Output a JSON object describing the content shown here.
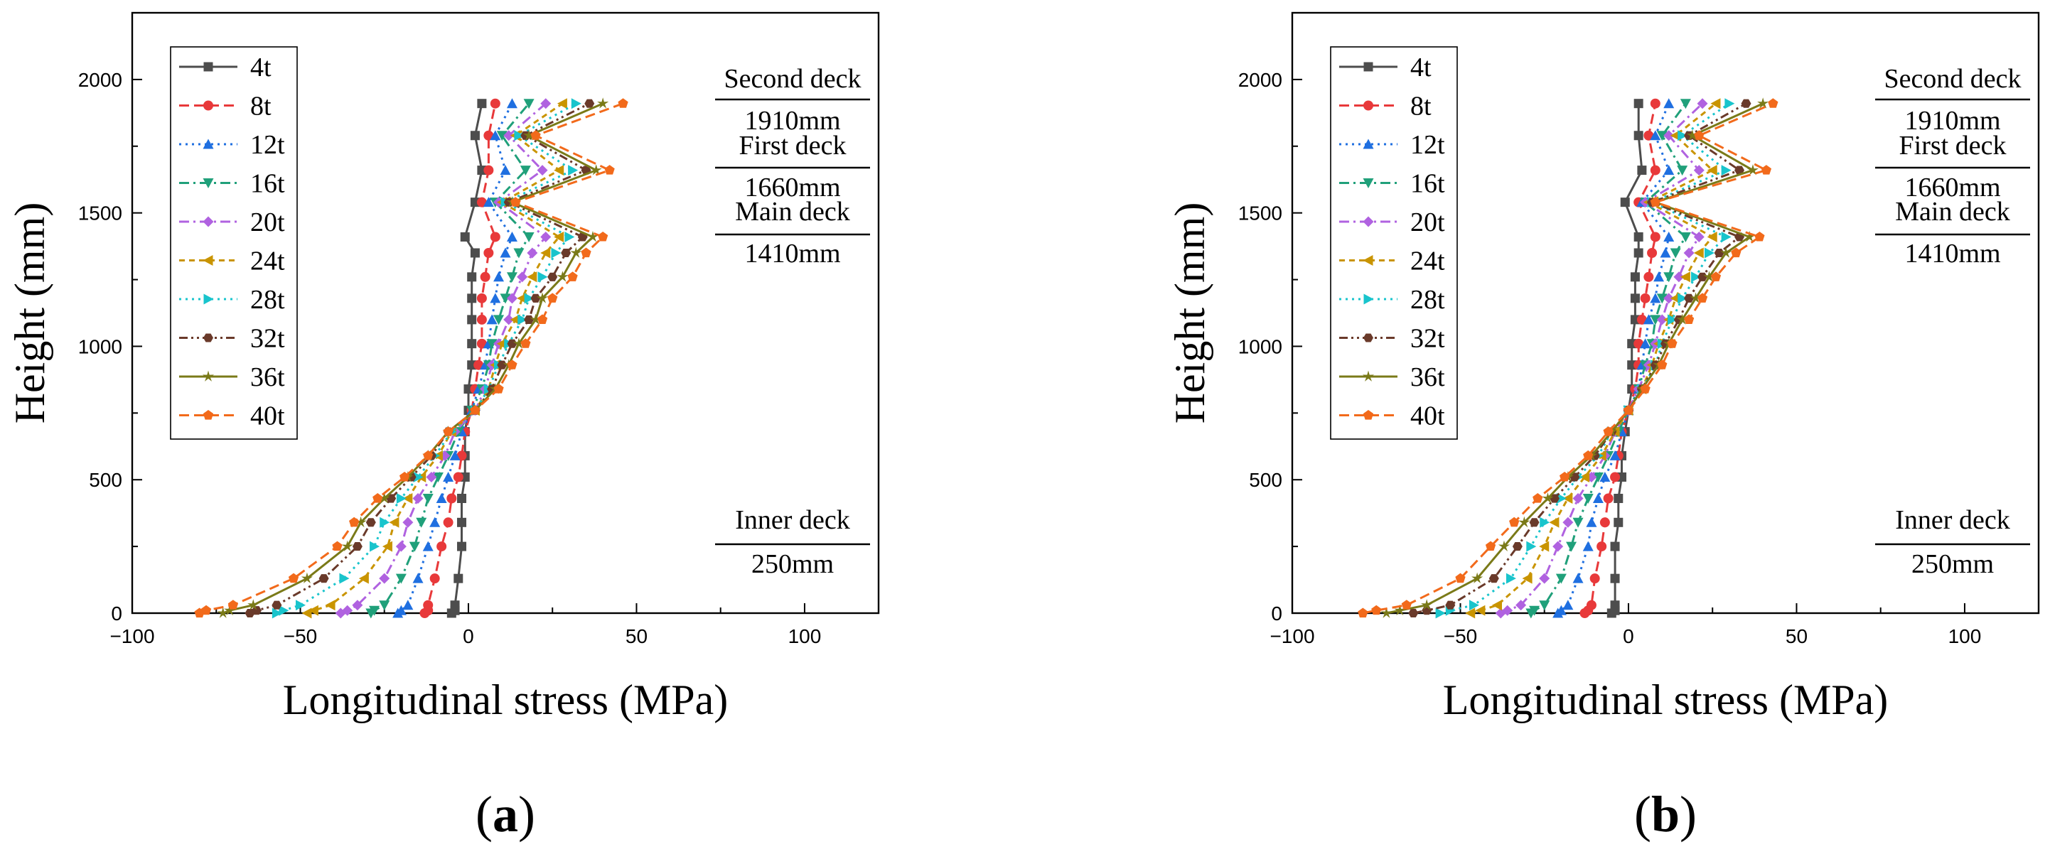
{
  "figure": {
    "series_meta": [
      {
        "name": "4t",
        "color": "#4d4d4d",
        "dash": "solid",
        "marker": "square"
      },
      {
        "name": "8t",
        "color": "#e8393a",
        "dash": "dash",
        "marker": "circle"
      },
      {
        "name": "12t",
        "color": "#1f6fe0",
        "dash": "dot",
        "marker": "triangle-up"
      },
      {
        "name": "16t",
        "color": "#20a07a",
        "dash": "dashdot",
        "marker": "triangle-down"
      },
      {
        "name": "20t",
        "color": "#b062e0",
        "dash": "dashdot",
        "marker": "diamond"
      },
      {
        "name": "24t",
        "color": "#c99400",
        "dash": "shortdash",
        "marker": "triangle-left"
      },
      {
        "name": "28t",
        "color": "#19c4cc",
        "dash": "dot",
        "marker": "triangle-right"
      },
      {
        "name": "32t",
        "color": "#6a3a2a",
        "dash": "dashdotdot",
        "marker": "hexagon"
      },
      {
        "name": "36t",
        "color": "#7a7a18",
        "dash": "solid",
        "marker": "star"
      },
      {
        "name": "40t",
        "color": "#f26a1b",
        "dash": "dash",
        "marker": "pentagon"
      }
    ]
  },
  "chart_data": [
    {
      "type": "line",
      "panel_label": "a",
      "panel_paren_open": "(",
      "panel_paren_close": ")",
      "xlabel": "Longitudinal stress (MPa)",
      "ylabel": "Height (mm)",
      "xlim": [
        -100,
        122
      ],
      "ylim": [
        0,
        2250
      ],
      "xticks": [
        -100,
        -50,
        0,
        50,
        100
      ],
      "xtick_labels": [
        "−100",
        "−50",
        "0",
        "50",
        "100"
      ],
      "yticks": [
        0,
        500,
        1000,
        1500,
        2000
      ],
      "ytick_labels": [
        "0",
        "500",
        "1000",
        "1500",
        "2000"
      ],
      "deck_annotations": [
        {
          "name": "Second deck",
          "value": "1910mm"
        },
        {
          "name": "First deck",
          "value": "1660mm"
        },
        {
          "name": "Main deck",
          "value": "1410mm"
        },
        {
          "name": "Inner deck",
          "value": "250mm"
        }
      ],
      "heights": [
        0,
        10,
        30,
        130,
        250,
        340,
        430,
        510,
        590,
        680,
        760,
        840,
        930,
        1010,
        1100,
        1180,
        1260,
        1350,
        1410,
        1540,
        1660,
        1790,
        1910
      ],
      "series": [
        {
          "name": "4t",
          "values": [
            -5,
            -4,
            -4,
            -3,
            -2,
            -2,
            -2,
            -1,
            -1,
            -1,
            0,
            0,
            1,
            1,
            1,
            1,
            1,
            2,
            -1,
            2,
            4,
            2,
            4
          ]
        },
        {
          "name": "8t",
          "values": [
            -13,
            -12,
            -12,
            -10,
            -8,
            -6,
            -5,
            -3,
            -2,
            -1,
            1,
            2,
            3,
            4,
            4,
            4,
            5,
            6,
            8,
            4,
            6,
            6,
            8
          ]
        },
        {
          "name": "12t",
          "values": [
            -21,
            -20,
            -18,
            -15,
            -12,
            -10,
            -8,
            -6,
            -4,
            -2,
            1,
            3,
            5,
            6,
            7,
            8,
            9,
            11,
            13,
            6,
            11,
            8,
            13
          ]
        },
        {
          "name": "16t",
          "values": [
            -29,
            -28,
            -25,
            -20,
            -16,
            -14,
            -12,
            -9,
            -6,
            -3,
            1,
            4,
            6,
            7,
            9,
            11,
            13,
            15,
            18,
            8,
            17,
            10,
            18
          ]
        },
        {
          "name": "20t",
          "values": [
            -38,
            -36,
            -33,
            -25,
            -20,
            -18,
            -15,
            -11,
            -7,
            -4,
            2,
            5,
            7,
            9,
            12,
            13,
            16,
            19,
            23,
            9,
            22,
            12,
            23
          ]
        },
        {
          "name": "24t",
          "values": [
            -48,
            -46,
            -41,
            -31,
            -24,
            -22,
            -18,
            -14,
            -9,
            -5,
            2,
            6,
            8,
            10,
            14,
            16,
            19,
            23,
            27,
            10,
            27,
            14,
            28
          ]
        },
        {
          "name": "28t",
          "values": [
            -57,
            -55,
            -50,
            -37,
            -28,
            -25,
            -20,
            -15,
            -10,
            -5,
            2,
            6,
            9,
            12,
            16,
            18,
            22,
            26,
            30,
            11,
            31,
            15,
            32
          ]
        },
        {
          "name": "32t",
          "values": [
            -65,
            -63,
            -57,
            -43,
            -33,
            -29,
            -23,
            -17,
            -11,
            -6,
            2,
            7,
            10,
            13,
            18,
            20,
            25,
            29,
            34,
            12,
            35,
            17,
            36
          ]
        },
        {
          "name": "36t",
          "values": [
            -73,
            -71,
            -64,
            -48,
            -36,
            -32,
            -25,
            -18,
            -12,
            -6,
            2,
            8,
            12,
            15,
            20,
            22,
            28,
            32,
            37,
            13,
            38,
            18,
            40
          ]
        },
        {
          "name": "40t",
          "values": [
            -80,
            -78,
            -70,
            -52,
            -39,
            -34,
            -27,
            -19,
            -12,
            -6,
            2,
            9,
            13,
            17,
            22,
            25,
            31,
            35,
            40,
            14,
            42,
            20,
            46
          ]
        }
      ]
    },
    {
      "type": "line",
      "panel_label": "b",
      "panel_paren_open": "(",
      "panel_paren_close": ")",
      "xlabel": "Longitudinal stress (MPa)",
      "ylabel": "Height (mm)",
      "xlim": [
        -100,
        122
      ],
      "ylim": [
        0,
        2250
      ],
      "xticks": [
        -100,
        -50,
        0,
        50,
        100
      ],
      "xtick_labels": [
        "−100",
        "−50",
        "0",
        "50",
        "100"
      ],
      "yticks": [
        0,
        500,
        1000,
        1500,
        2000
      ],
      "ytick_labels": [
        "0",
        "500",
        "1000",
        "1500",
        "2000"
      ],
      "deck_annotations": [
        {
          "name": "Second deck",
          "value": "1910mm"
        },
        {
          "name": "First deck",
          "value": "1660mm"
        },
        {
          "name": "Main deck",
          "value": "1410mm"
        },
        {
          "name": "Inner deck",
          "value": "250mm"
        }
      ],
      "heights": [
        0,
        10,
        30,
        130,
        250,
        340,
        430,
        510,
        590,
        680,
        760,
        840,
        930,
        1010,
        1100,
        1180,
        1260,
        1350,
        1410,
        1540,
        1660,
        1790,
        1910
      ],
      "series": [
        {
          "name": "4t",
          "values": [
            -5,
            -4,
            -4,
            -4,
            -4,
            -3,
            -3,
            -2,
            -2,
            -1,
            0,
            1,
            1,
            1,
            2,
            2,
            2,
            3,
            3,
            -1,
            4,
            3,
            3
          ]
        },
        {
          "name": "8t",
          "values": [
            -13,
            -12,
            -11,
            -10,
            -8,
            -7,
            -6,
            -4,
            -3,
            -2,
            0,
            2,
            3,
            3,
            4,
            5,
            6,
            7,
            8,
            3,
            8,
            6,
            8
          ]
        },
        {
          "name": "12t",
          "values": [
            -21,
            -20,
            -18,
            -15,
            -12,
            -11,
            -9,
            -7,
            -4,
            -2,
            0,
            3,
            4,
            5,
            6,
            8,
            9,
            11,
            12,
            4,
            12,
            8,
            12
          ]
        },
        {
          "name": "16t",
          "values": [
            -29,
            -28,
            -25,
            -20,
            -17,
            -15,
            -12,
            -9,
            -6,
            -3,
            0,
            3,
            5,
            7,
            8,
            10,
            12,
            14,
            17,
            5,
            16,
            10,
            17
          ]
        },
        {
          "name": "20t",
          "values": [
            -38,
            -36,
            -32,
            -25,
            -21,
            -18,
            -15,
            -11,
            -7,
            -4,
            0,
            3,
            6,
            8,
            10,
            12,
            15,
            18,
            21,
            5,
            21,
            12,
            22
          ]
        },
        {
          "name": "24t",
          "values": [
            -47,
            -44,
            -39,
            -30,
            -25,
            -22,
            -18,
            -13,
            -8,
            -4,
            0,
            4,
            7,
            9,
            12,
            14,
            17,
            21,
            25,
            6,
            25,
            14,
            26
          ]
        },
        {
          "name": "28t",
          "values": [
            -56,
            -53,
            -46,
            -35,
            -29,
            -25,
            -20,
            -15,
            -9,
            -5,
            0,
            4,
            8,
            10,
            13,
            16,
            20,
            24,
            29,
            7,
            29,
            16,
            30
          ]
        },
        {
          "name": "32t",
          "values": [
            -64,
            -60,
            -53,
            -40,
            -33,
            -28,
            -22,
            -16,
            -10,
            -5,
            0,
            4,
            8,
            11,
            15,
            18,
            22,
            27,
            33,
            7,
            33,
            18,
            35
          ]
        },
        {
          "name": "36t",
          "values": [
            -72,
            -68,
            -60,
            -45,
            -37,
            -31,
            -24,
            -18,
            -11,
            -5,
            0,
            4,
            9,
            12,
            16,
            20,
            24,
            29,
            36,
            8,
            37,
            19,
            40
          ]
        },
        {
          "name": "40t",
          "values": [
            -79,
            -75,
            -66,
            -50,
            -41,
            -34,
            -27,
            -19,
            -12,
            -6,
            0,
            5,
            10,
            13,
            18,
            22,
            26,
            32,
            39,
            8,
            41,
            21,
            43
          ]
        }
      ]
    }
  ]
}
